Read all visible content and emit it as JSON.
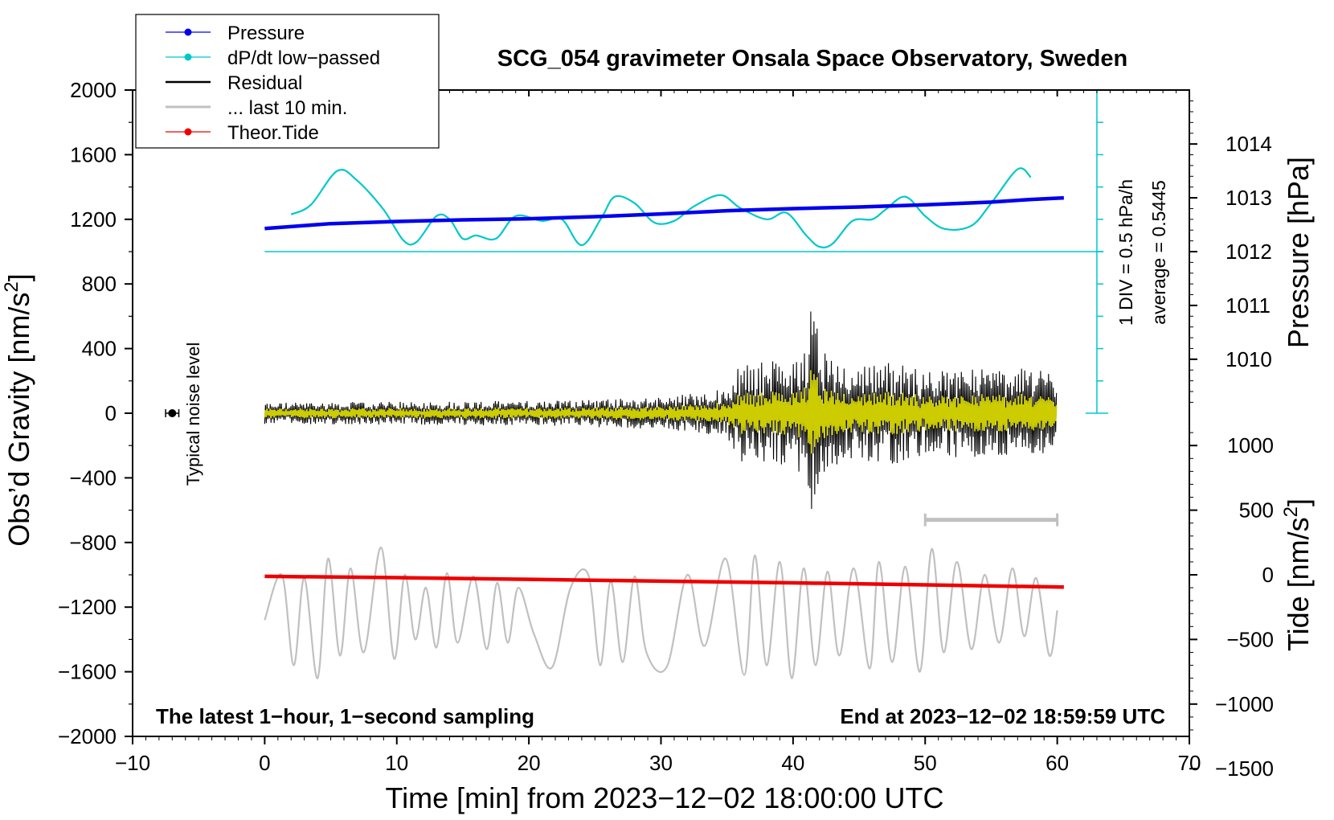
{
  "chart_data": {
    "type": "line",
    "title": "SCG_054 gravimeter Onsala Space Observatory, Sweden",
    "xlabel": "Time [min] from 2023−12−02 18:00:00 UTC",
    "ylabel_main": "Obs’d Gravity [nm/s",
    "ylabel_main_sup": "2",
    "ylabel_main_close": "]",
    "ylabel_pressure": "Pressure [hPa]",
    "ylabel_tide": "Tide [nm/s",
    "ylabel_tide_sup": "2",
    "ylabel_tide_close": "]",
    "xlim": [
      -10,
      70
    ],
    "ylim": [
      -2000,
      2000
    ],
    "x_ticks": [
      "−10",
      "0",
      "10",
      "20",
      "30",
      "40",
      "50",
      "60",
      "70"
    ],
    "x_tick_values": [
      -10,
      0,
      10,
      20,
      30,
      40,
      50,
      60,
      70
    ],
    "y_ticks": [
      "2000",
      "1600",
      "1200",
      "800",
      "400",
      "0",
      "−400",
      "−800",
      "−1200",
      "−1600",
      "−2000"
    ],
    "y_tick_values": [
      2000,
      1600,
      1200,
      800,
      400,
      0,
      -400,
      -800,
      -1200,
      -1600,
      -2000
    ],
    "pressure_ticks": [
      "1014",
      "1013",
      "1012",
      "1011",
      "1010"
    ],
    "pressure_tick_values": [
      1014,
      1013,
      1012,
      1011,
      1010
    ],
    "pressure_scale": {
      "value_1012_at_gravity": 1000,
      "gravity_per_hPa": 333
    },
    "tide_ticks": [
      "1000",
      "500",
      "0",
      "−500",
      "−1000",
      "−1500"
    ],
    "tide_tick_values": [
      1000,
      500,
      0,
      -500,
      -1000,
      -1500
    ],
    "tide_scale": {
      "tide_zero_at_gravity": -1000,
      "gravity_per_tide": 0.8
    },
    "legend": [
      {
        "label": "Pressure",
        "color": "#0000ee",
        "marker": true
      },
      {
        "label": "dP/dt low−passed",
        "color": "#00c8c8",
        "marker": true
      },
      {
        "label": "Residual",
        "color": "#000000",
        "marker": false
      },
      {
        "label": "... last 10 min.",
        "color": "#c0c0c0",
        "marker": false
      },
      {
        "label": "Theor.Tide",
        "color": "#ee0000",
        "marker": true
      }
    ],
    "legend_position": "top-left",
    "annotations": {
      "bottom_left": "The latest 1−hour, 1−second sampling",
      "bottom_right": "End at 2023−12−02 18:59:59 UTC",
      "dpdt_div": "1 DIV = 0.5 hPa/h",
      "dpdt_average": "average = 0.5445",
      "noise_label": "Typical noise level"
    },
    "noise_marker": {
      "x": -7,
      "y": 0,
      "halfwidth": 0.5
    },
    "last10_bracket": {
      "x_start": 50,
      "x_end": 60,
      "y": -660
    },
    "dpdt_baseline": {
      "x_start": 0,
      "x_end": 63.5,
      "y": 1000
    },
    "dpdt_scale_axis": {
      "x": 63,
      "y_top": 2000,
      "y_bottom": 0,
      "divisions": 10
    },
    "colors": {
      "pressure": "#0000ee",
      "dpdt": "#00c8c8",
      "residual": "#000000",
      "residual_filtered": "#cccc00",
      "last10": "#c0c0c0",
      "tide": "#ee0000"
    },
    "series": [
      {
        "name": "Pressure",
        "unit": "hPa",
        "x": [
          0,
          5,
          10,
          15,
          20,
          25,
          30,
          35,
          40,
          45,
          50,
          55,
          58,
          60.5
        ],
        "values": [
          1012.43,
          1012.52,
          1012.56,
          1012.59,
          1012.61,
          1012.65,
          1012.7,
          1012.76,
          1012.8,
          1012.83,
          1012.87,
          1012.92,
          1012.97,
          1013.0
        ]
      },
      {
        "name": "dP/dt low-passed",
        "unit": "nm/s2 (plot units)",
        "x": [
          2,
          3.5,
          5.5,
          7,
          9,
          10.5,
          11.5,
          13,
          14,
          15,
          16,
          17.5,
          19,
          21,
          22.5,
          24,
          25.5,
          26.5,
          28,
          29.5,
          31,
          32.5,
          34.5,
          36,
          38,
          39.5,
          41,
          42,
          43,
          44.5,
          46,
          47,
          48.5,
          50,
          51.5,
          53.5,
          55,
          57,
          58
        ],
        "values": [
          1230,
          1290,
          1500,
          1440,
          1260,
          1070,
          1060,
          1220,
          1200,
          1080,
          1100,
          1080,
          1220,
          1190,
          1200,
          1040,
          1210,
          1340,
          1300,
          1180,
          1190,
          1280,
          1350,
          1270,
          1200,
          1240,
          1100,
          1030,
          1050,
          1190,
          1200,
          1260,
          1340,
          1220,
          1140,
          1160,
          1300,
          1510,
          1460
        ]
      },
      {
        "name": "Residual",
        "unit": "nm/s2",
        "x_range": [
          0,
          60
        ],
        "amplitude_envelope": {
          "x": [
            0,
            20,
            30,
            35,
            36,
            38,
            40,
            41,
            41.5,
            42,
            44,
            46,
            48,
            50,
            55,
            60
          ],
          "values": [
            60,
            70,
            90,
            140,
            280,
            300,
            280,
            450,
            700,
            400,
            260,
            300,
            280,
            240,
            260,
            240
          ]
        }
      },
      {
        "name": "... last 10 min.",
        "unit": "nm/s2",
        "x_range": [
          0,
          60
        ],
        "baseline": -1300,
        "peaks": [
          {
            "x": 1.3,
            "y": -1000
          },
          {
            "x": 2.2,
            "y": -1560
          },
          {
            "x": 3.0,
            "y": -1020
          },
          {
            "x": 4.0,
            "y": -1640
          },
          {
            "x": 4.8,
            "y": -900
          },
          {
            "x": 5.7,
            "y": -1500
          },
          {
            "x": 6.5,
            "y": -960
          },
          {
            "x": 7.5,
            "y": -1480
          },
          {
            "x": 8.8,
            "y": -830
          },
          {
            "x": 9.8,
            "y": -1520
          },
          {
            "x": 10.6,
            "y": -1000
          },
          {
            "x": 11.4,
            "y": -1400
          },
          {
            "x": 12.2,
            "y": -1080
          },
          {
            "x": 13.0,
            "y": -1450
          },
          {
            "x": 13.8,
            "y": -990
          },
          {
            "x": 14.6,
            "y": -1420
          },
          {
            "x": 15.8,
            "y": -1010
          },
          {
            "x": 16.8,
            "y": -1460
          },
          {
            "x": 17.6,
            "y": -1050
          },
          {
            "x": 18.4,
            "y": -1420
          },
          {
            "x": 19.2,
            "y": -1080
          },
          {
            "x": 20.4,
            "y": -1370
          },
          {
            "x": 24.5,
            "y": -1000
          },
          {
            "x": 25.4,
            "y": -1560
          },
          {
            "x": 26.2,
            "y": -1040
          },
          {
            "x": 27.1,
            "y": -1540
          },
          {
            "x": 28.0,
            "y": -1010
          },
          {
            "x": 28.9,
            "y": -1480
          },
          {
            "x": 32.0,
            "y": -1000
          },
          {
            "x": 33.3,
            "y": -1440
          },
          {
            "x": 34.9,
            "y": -900
          },
          {
            "x": 36.3,
            "y": -1620
          },
          {
            "x": 37.1,
            "y": -880
          },
          {
            "x": 38.0,
            "y": -1560
          },
          {
            "x": 39.0,
            "y": -920
          },
          {
            "x": 39.9,
            "y": -1640
          },
          {
            "x": 40.8,
            "y": -960
          },
          {
            "x": 41.7,
            "y": -1560
          },
          {
            "x": 42.6,
            "y": -980
          },
          {
            "x": 43.5,
            "y": -1500
          },
          {
            "x": 44.6,
            "y": -960
          },
          {
            "x": 45.8,
            "y": -1580
          },
          {
            "x": 46.5,
            "y": -920
          },
          {
            "x": 47.5,
            "y": -1540
          },
          {
            "x": 48.5,
            "y": -950
          },
          {
            "x": 49.6,
            "y": -1600
          },
          {
            "x": 50.5,
            "y": -840
          },
          {
            "x": 51.4,
            "y": -1480
          },
          {
            "x": 52.4,
            "y": -920
          },
          {
            "x": 53.5,
            "y": -1460
          },
          {
            "x": 54.5,
            "y": -1000
          },
          {
            "x": 55.6,
            "y": -1420
          },
          {
            "x": 56.6,
            "y": -960
          },
          {
            "x": 57.5,
            "y": -1380
          },
          {
            "x": 58.4,
            "y": -1020
          },
          {
            "x": 59.4,
            "y": -1500
          },
          {
            "x": 60.0,
            "y": -1220
          }
        ]
      },
      {
        "name": "Theor.Tide",
        "unit": "nm/s2 (tide)",
        "x": [
          0,
          10,
          20,
          30,
          40,
          50,
          60.5
        ],
        "values": [
          -12,
          -22,
          -35,
          -49,
          -62,
          -78,
          -95
        ]
      }
    ]
  }
}
